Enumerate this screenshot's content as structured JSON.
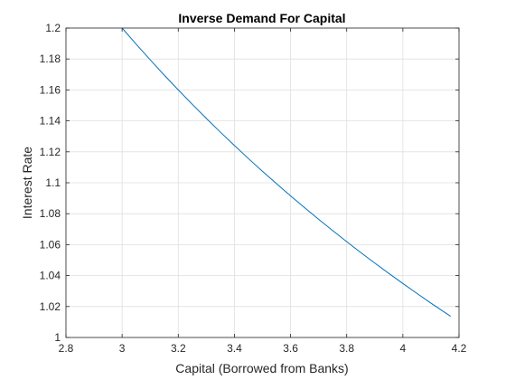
{
  "chart_data": {
    "type": "line",
    "title": "Inverse Demand For Capital",
    "xlabel": "Capital (Borrowed from Banks)",
    "ylabel": "Interest Rate",
    "xlim": [
      2.8,
      4.2
    ],
    "ylim": [
      1.0,
      1.2
    ],
    "xticks": [
      "2.8",
      "3",
      "3.2",
      "3.4",
      "3.6",
      "3.8",
      "4",
      "4.2"
    ],
    "yticks": [
      "1",
      "1.02",
      "1.04",
      "1.06",
      "1.08",
      "1.1",
      "1.12",
      "1.14",
      "1.16",
      "1.18",
      "1.2"
    ],
    "grid": true,
    "series": [
      {
        "color": "#0072BD",
        "x": [
          3.0,
          3.05,
          3.1,
          3.15,
          3.2,
          3.25,
          3.3,
          3.35,
          3.4,
          3.45,
          3.5,
          3.55,
          3.6,
          3.65,
          3.7,
          3.75,
          3.8,
          3.85,
          3.9,
          3.95,
          4.0,
          4.05,
          4.1,
          4.15,
          4.17
        ],
        "y": [
          1.2,
          1.1896,
          1.1795,
          1.1696,
          1.16,
          1.1507,
          1.1416,
          1.1327,
          1.1241,
          1.1156,
          1.1074,
          1.0994,
          1.0915,
          1.0839,
          1.0764,
          1.0691,
          1.0619,
          1.0549,
          1.0481,
          1.0414,
          1.0349,
          1.0285,
          1.0222,
          1.0161,
          1.0137
        ]
      }
    ]
  }
}
